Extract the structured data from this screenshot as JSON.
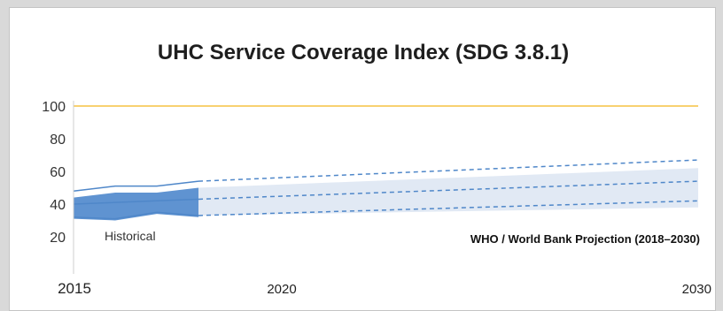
{
  "chart_data": {
    "type": "area",
    "title": "UHC Service Coverage Index (SDG 3.8.1)",
    "xlabel": "",
    "ylabel": "",
    "xlim": [
      2015,
      2030
    ],
    "ylim": [
      10,
      100
    ],
    "x_ticks": [
      "2015",
      "2020",
      "2030"
    ],
    "y_ticks": [
      "20",
      "40",
      "60",
      "80",
      "100"
    ],
    "grid": false,
    "reference_line": {
      "y": 100,
      "color": "#f5c242"
    },
    "annotations": {
      "historical": "Historical",
      "projection": "WHO / World Bank Projection (2018–2030)"
    },
    "series": [
      {
        "name": "Historical",
        "band_upper": {
          "x": [
            2015,
            2016,
            2017,
            2018
          ],
          "y": [
            44,
            47,
            47,
            50
          ]
        },
        "band_lower": {
          "x": [
            2015,
            2016,
            2017,
            2018
          ],
          "y": [
            31,
            30,
            34,
            32
          ]
        },
        "upper_line": {
          "x": [
            2015,
            2016,
            2017,
            2018
          ],
          "y": [
            48,
            51,
            51,
            54
          ]
        },
        "median_line": {
          "x": [
            2015,
            2016,
            2017,
            2018
          ],
          "y": [
            40,
            41,
            42,
            43
          ]
        },
        "lower_line": {
          "x": [
            2015,
            2016,
            2017,
            2018
          ],
          "y": [
            32,
            31,
            35,
            33
          ]
        },
        "color": "#4f87c9",
        "fill": "#5f93d1"
      },
      {
        "name": "WHO / World Bank Projection (2018–2030)",
        "band_upper": {
          "x": [
            2018,
            2030
          ],
          "y": [
            50,
            62
          ]
        },
        "band_lower": {
          "x": [
            2018,
            2030
          ],
          "y": [
            33,
            38
          ]
        },
        "upper_line": {
          "x": [
            2018,
            2030
          ],
          "y": [
            54,
            67
          ]
        },
        "median_line": {
          "x": [
            2018,
            2030
          ],
          "y": [
            43,
            54
          ]
        },
        "lower_line": {
          "x": [
            2018,
            2030
          ],
          "y": [
            33,
            42
          ]
        },
        "color": "#4f87c9",
        "fill": "#e1e9f4",
        "dashed": true
      }
    ]
  }
}
